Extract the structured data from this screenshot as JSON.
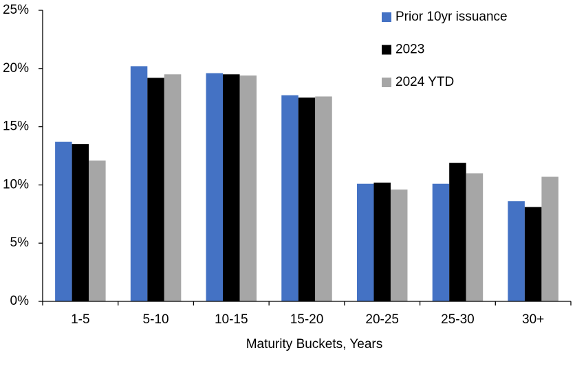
{
  "chart_data": {
    "type": "bar",
    "x_label": "Maturity Buckets, Years",
    "categories": [
      "1-5",
      "5-10",
      "10-15",
      "15-20",
      "20-25",
      "25-30",
      "30+"
    ],
    "series": [
      {
        "name": "Prior 10yr issuance",
        "color": "#4472c4",
        "values": [
          13.7,
          20.2,
          19.6,
          17.7,
          10.1,
          10.1,
          8.6
        ]
      },
      {
        "name": "2023",
        "color": "#000000",
        "values": [
          13.5,
          19.2,
          19.5,
          17.5,
          10.2,
          11.9,
          8.1
        ]
      },
      {
        "name": "2024 YTD",
        "color": "#a6a6a6",
        "values": [
          12.1,
          19.5,
          19.4,
          17.6,
          9.6,
          11.0,
          10.7
        ]
      }
    ],
    "ylim": [
      0,
      25
    ],
    "yticks": [
      {
        "value": 0,
        "label": "0%"
      },
      {
        "value": 5,
        "label": "5%"
      },
      {
        "value": 10,
        "label": "10%"
      },
      {
        "value": 15,
        "label": "15%"
      },
      {
        "value": 20,
        "label": "20%"
      },
      {
        "value": 25,
        "label": "25%"
      }
    ],
    "grid": false,
    "legend": "upper right"
  }
}
